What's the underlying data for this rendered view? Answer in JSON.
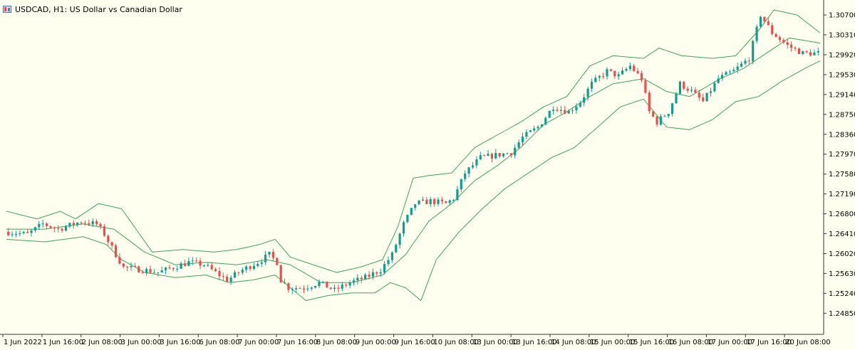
{
  "window": {
    "title": "USDCAD, H1:  US Dollar vs Canadian Dollar",
    "icon": "chart-window-icon"
  },
  "colors": {
    "background": "#fffff0",
    "axis": "#333333",
    "bull": "#0f9e8a",
    "bear": "#ef4b4b",
    "band": "#3ca357"
  },
  "chart_data": {
    "type": "candlestick",
    "symbol": "USDCAD",
    "timeframe": "H1",
    "ylim": [
      1.2445,
      1.3091
    ],
    "y_ticks": [
      "1.30700",
      "1.30310",
      "1.29920",
      "1.29530",
      "1.29140",
      "1.28750",
      "1.28360",
      "1.27970",
      "1.27580",
      "1.27190",
      "1.26800",
      "1.26410",
      "1.26020",
      "1.25630",
      "1.25240",
      "1.24850"
    ],
    "x_ticks": [
      "1 Jun 2022",
      "1 Jun 16:00",
      "2 Jun 08:00",
      "3 Jun 00:00",
      "3 Jun 16:00",
      "6 Jun 08:00",
      "7 Jun 00:00",
      "7 Jun 16:00",
      "8 Jun 08:00",
      "9 Jun 00:00",
      "9 Jun 16:00",
      "10 Jun 08:00",
      "13 Jun 00:00",
      "13 Jun 16:00",
      "14 Jun 08:00",
      "15 Jun 00:00",
      "15 Jun 16:00",
      "16 Jun 08:00",
      "17 Jun 00:00",
      "17 Jun 16:00",
      "20 Jun 08:00"
    ],
    "price_path": [
      [
        0,
        1.2645
      ],
      [
        6,
        1.264
      ],
      [
        10,
        1.266
      ],
      [
        14,
        1.265
      ],
      [
        20,
        1.2665
      ],
      [
        24,
        1.266
      ],
      [
        26,
        1.264
      ],
      [
        29,
        1.26
      ],
      [
        31,
        1.2575
      ],
      [
        36,
        1.257
      ],
      [
        40,
        1.2565
      ],
      [
        44,
        1.2575
      ],
      [
        48,
        1.2585
      ],
      [
        52,
        1.258
      ],
      [
        55,
        1.2565
      ],
      [
        58,
        1.255
      ],
      [
        62,
        1.257
      ],
      [
        66,
        1.2585
      ],
      [
        69,
        1.26
      ],
      [
        71,
        1.2585
      ],
      [
        72,
        1.255
      ],
      [
        74,
        1.2535
      ],
      [
        78,
        1.2535
      ],
      [
        82,
        1.2545
      ],
      [
        86,
        1.253
      ],
      [
        90,
        1.2545
      ],
      [
        94,
        1.2555
      ],
      [
        98,
        1.257
      ],
      [
        101,
        1.26
      ],
      [
        104,
        1.266
      ],
      [
        107,
        1.27
      ],
      [
        111,
        1.2705
      ],
      [
        115,
        1.27
      ],
      [
        117,
        1.271
      ],
      [
        120,
        1.276
      ],
      [
        124,
        1.279
      ],
      [
        128,
        1.2795
      ],
      [
        132,
        1.28
      ],
      [
        135,
        1.283
      ],
      [
        139,
        1.285
      ],
      [
        143,
        1.289
      ],
      [
        147,
        1.288
      ],
      [
        150,
        1.29
      ],
      [
        153,
        1.2935
      ],
      [
        157,
        1.296
      ],
      [
        160,
        1.295
      ],
      [
        163,
        1.297
      ],
      [
        166,
        1.2945
      ],
      [
        168,
        1.288
      ],
      [
        170,
        1.286
      ],
      [
        173,
        1.288
      ],
      [
        176,
        1.2935
      ],
      [
        179,
        1.292
      ],
      [
        182,
        1.29
      ],
      [
        186,
        1.2945
      ],
      [
        190,
        1.296
      ],
      [
        194,
        1.2985
      ],
      [
        197,
        1.307
      ],
      [
        200,
        1.3035
      ],
      [
        204,
        1.301
      ],
      [
        208,
        1.2995
      ],
      [
        212,
        1.2995
      ]
    ],
    "upper_band_path": [
      [
        0,
        1.2685
      ],
      [
        8,
        1.267
      ],
      [
        14,
        1.2685
      ],
      [
        18,
        1.267
      ],
      [
        24,
        1.27
      ],
      [
        30,
        1.269
      ],
      [
        38,
        1.2605
      ],
      [
        46,
        1.261
      ],
      [
        54,
        1.2605
      ],
      [
        60,
        1.261
      ],
      [
        66,
        1.262
      ],
      [
        70,
        1.263
      ],
      [
        74,
        1.2595
      ],
      [
        80,
        1.258
      ],
      [
        86,
        1.2565
      ],
      [
        92,
        1.2575
      ],
      [
        98,
        1.259
      ],
      [
        102,
        1.2655
      ],
      [
        106,
        1.275
      ],
      [
        110,
        1.2755
      ],
      [
        116,
        1.276
      ],
      [
        122,
        1.281
      ],
      [
        128,
        1.2835
      ],
      [
        134,
        1.286
      ],
      [
        140,
        1.289
      ],
      [
        146,
        1.291
      ],
      [
        152,
        1.297
      ],
      [
        158,
        1.299
      ],
      [
        166,
        1.2985
      ],
      [
        170,
        1.3005
      ],
      [
        176,
        1.299
      ],
      [
        184,
        1.2985
      ],
      [
        190,
        1.299
      ],
      [
        196,
        1.304
      ],
      [
        200,
        1.308
      ],
      [
        206,
        1.307
      ],
      [
        212,
        1.3035
      ]
    ],
    "middle_band_path": [
      [
        0,
        1.265
      ],
      [
        10,
        1.265
      ],
      [
        20,
        1.266
      ],
      [
        28,
        1.265
      ],
      [
        36,
        1.2605
      ],
      [
        44,
        1.258
      ],
      [
        52,
        1.2585
      ],
      [
        60,
        1.258
      ],
      [
        68,
        1.259
      ],
      [
        74,
        1.258
      ],
      [
        82,
        1.2545
      ],
      [
        90,
        1.2545
      ],
      [
        98,
        1.256
      ],
      [
        104,
        1.26
      ],
      [
        110,
        1.2665
      ],
      [
        116,
        1.27
      ],
      [
        122,
        1.2745
      ],
      [
        128,
        1.2775
      ],
      [
        134,
        1.281
      ],
      [
        140,
        1.2855
      ],
      [
        146,
        1.288
      ],
      [
        152,
        1.291
      ],
      [
        158,
        1.2935
      ],
      [
        166,
        1.2945
      ],
      [
        172,
        1.292
      ],
      [
        178,
        1.291
      ],
      [
        186,
        1.2945
      ],
      [
        192,
        1.2965
      ],
      [
        198,
        1.2995
      ],
      [
        204,
        1.3025
      ],
      [
        212,
        1.3015
      ]
    ],
    "lower_band_path": [
      [
        0,
        1.263
      ],
      [
        10,
        1.2625
      ],
      [
        20,
        1.2635
      ],
      [
        26,
        1.262
      ],
      [
        30,
        1.259
      ],
      [
        36,
        1.2565
      ],
      [
        44,
        1.2555
      ],
      [
        52,
        1.256
      ],
      [
        58,
        1.2545
      ],
      [
        64,
        1.255
      ],
      [
        70,
        1.256
      ],
      [
        74,
        1.2535
      ],
      [
        78,
        1.251
      ],
      [
        84,
        1.252
      ],
      [
        90,
        1.2525
      ],
      [
        96,
        1.2525
      ],
      [
        100,
        1.2545
      ],
      [
        104,
        1.2535
      ],
      [
        108,
        1.251
      ],
      [
        112,
        1.259
      ],
      [
        118,
        1.2645
      ],
      [
        124,
        1.269
      ],
      [
        130,
        1.273
      ],
      [
        136,
        1.276
      ],
      [
        142,
        1.279
      ],
      [
        148,
        1.281
      ],
      [
        154,
        1.285
      ],
      [
        160,
        1.289
      ],
      [
        166,
        1.2905
      ],
      [
        172,
        1.285
      ],
      [
        178,
        1.2845
      ],
      [
        184,
        1.2865
      ],
      [
        190,
        1.29
      ],
      [
        196,
        1.291
      ],
      [
        202,
        1.294
      ],
      [
        208,
        1.2965
      ],
      [
        212,
        1.298
      ]
    ]
  }
}
